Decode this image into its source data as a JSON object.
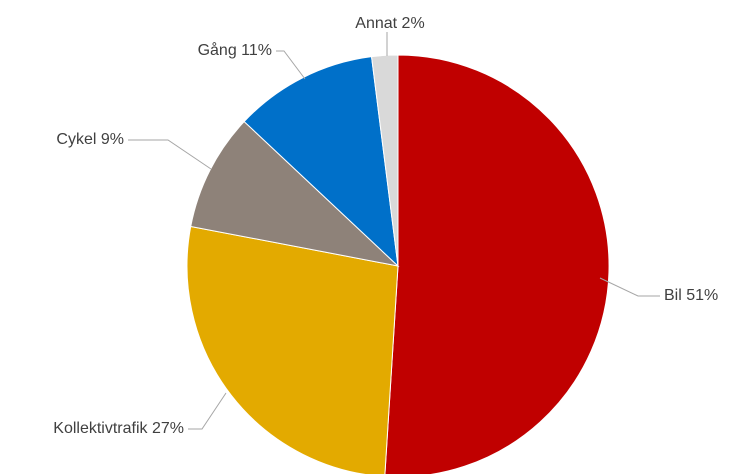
{
  "chart_data": {
    "type": "pie",
    "title": "",
    "start_angle_deg": 0,
    "direction": "clockwise",
    "legend": "none",
    "slices": [
      {
        "name": "Bil",
        "value": 51,
        "label": "Bil 51%",
        "color": "#c00000"
      },
      {
        "name": "Kollektivtrafik",
        "value": 27,
        "label": "Kollektivtrafik 27%",
        "color": "#e3aa00"
      },
      {
        "name": "Cykel",
        "value": 9,
        "label": "Cykel 9%",
        "color": "#8e8279"
      },
      {
        "name": "Gång",
        "value": 11,
        "label": "Gång 11%",
        "color": "#0070c9"
      },
      {
        "name": "Annat",
        "value": 2,
        "label": "Annat 2%",
        "color": "#d9d9d9"
      }
    ]
  }
}
